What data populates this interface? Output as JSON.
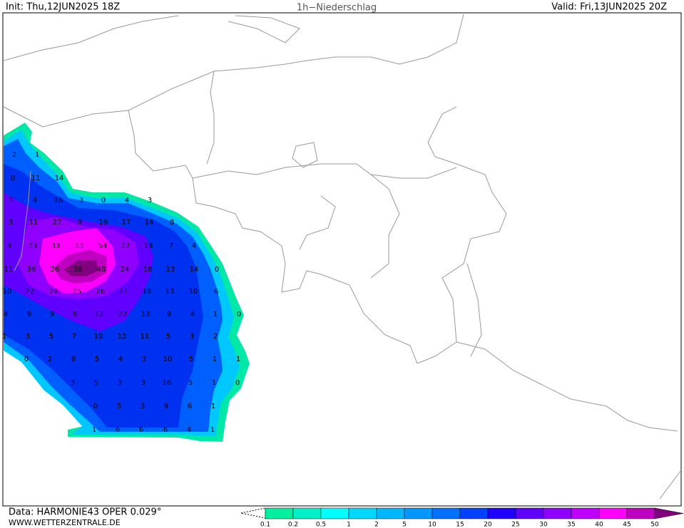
{
  "header": {
    "init": "Init: Thu,12JUN2025 18Z",
    "title": "1h−Niederschlag",
    "valid": "Valid: Fri,13JUN2025 20Z"
  },
  "footer": {
    "data": "Data: HARMONIE43 OPER 0.029°",
    "site": "WWW.WETTERZENTRALE.DE"
  },
  "colorbar": {
    "labels": [
      0.1,
      0.2,
      0.5,
      1,
      2,
      5,
      10,
      15,
      20,
      25,
      30,
      35,
      40,
      45,
      50
    ],
    "colors": [
      "#00f0a0",
      "#00f0c8",
      "#00ffff",
      "#00d8ff",
      "#00b8ff",
      "#0098ff",
      "#0070ff",
      "#0040ff",
      "#2000ff",
      "#6000ff",
      "#9000ff",
      "#c000ff",
      "#ff00ff",
      "#c000c0"
    ],
    "over_color": "#800080"
  },
  "precip_labels": [
    [
      2,
      1
    ],
    [
      0,
      11,
      14
    ],
    [
      5,
      4,
      16,
      3,
      0,
      4,
      3
    ],
    [
      3,
      11,
      27,
      9,
      19,
      17,
      14,
      8
    ],
    [
      4,
      23,
      33,
      33,
      54,
      22,
      19,
      7,
      4
    ],
    [
      11,
      36,
      26,
      38,
      48,
      24,
      18,
      13,
      14,
      0
    ],
    [
      10,
      22,
      24,
      25,
      26,
      17,
      16,
      13,
      10,
      6
    ],
    [
      4,
      9,
      9,
      6,
      12,
      22,
      13,
      9,
      4,
      1,
      0
    ],
    [
      1,
      3,
      5,
      7,
      10,
      13,
      11,
      5,
      3,
      2
    ],
    [
      0,
      2,
      8,
      5,
      4,
      3,
      10,
      5,
      1,
      1
    ],
    [
      3,
      5,
      3,
      3,
      16,
      5,
      1,
      0
    ],
    [
      0,
      5,
      3,
      9,
      6,
      1
    ],
    [
      1,
      6,
      6,
      6,
      4,
      1
    ]
  ]
}
